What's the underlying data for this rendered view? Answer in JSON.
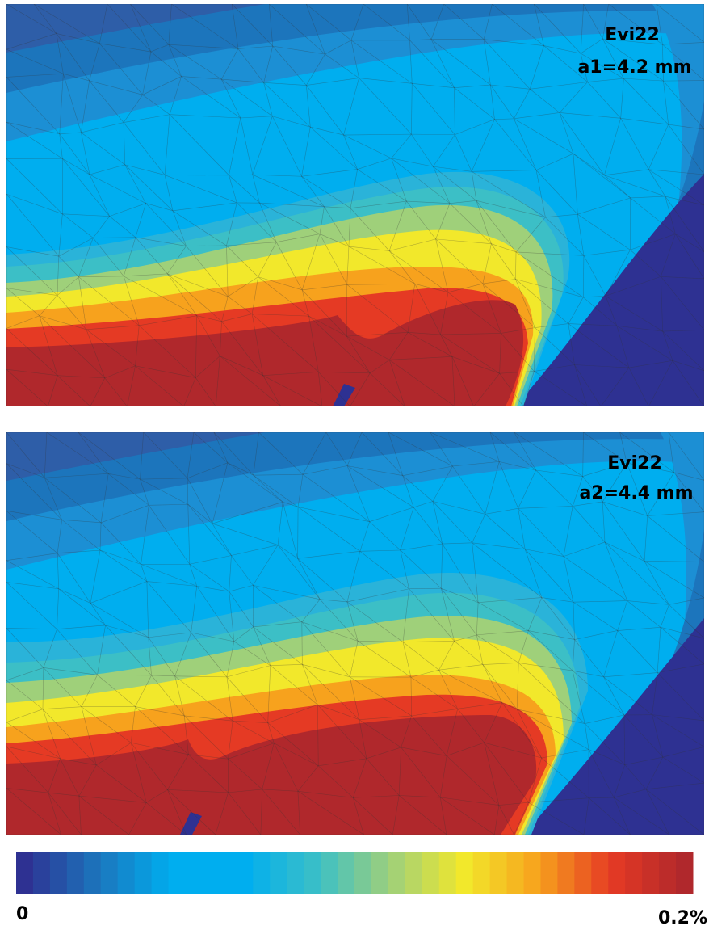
{
  "panels": [
    {
      "title": "Evi22",
      "label": "a1=4.2 mm"
    },
    {
      "title": "Evi22",
      "label": "a2=4.4 mm"
    }
  ],
  "colorbar": {
    "min_label": "0",
    "max_label": "0.2%"
  }
}
